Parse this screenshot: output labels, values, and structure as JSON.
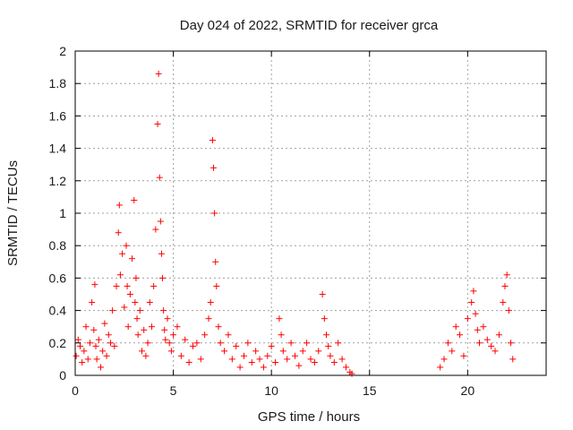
{
  "chart_data": {
    "type": "scatter",
    "title": "Day 024 of 2022, SRMTID for receiver grca",
    "xlabel": "GPS time / hours",
    "ylabel": "SRMTID / TECUs",
    "xlim": [
      0,
      24
    ],
    "ylim": [
      0,
      2
    ],
    "x_ticks": [
      0,
      5,
      10,
      15,
      20
    ],
    "x_tick_labels": [
      "0",
      "5",
      "10",
      "15",
      "20"
    ],
    "y_ticks": [
      0,
      0.2,
      0.4,
      0.6,
      0.8,
      1,
      1.2,
      1.4,
      1.6,
      1.8,
      2
    ],
    "y_tick_labels": [
      "0",
      "0.2",
      "0.4",
      "0.6",
      "0.8",
      "1",
      "1.2",
      "1.4",
      "1.6",
      "1.8",
      "2"
    ],
    "grid": true,
    "marker": "+",
    "series_color": "#ff0000",
    "series": [
      {
        "name": "SRMTID",
        "x": [
          0.05,
          0.15,
          0.25,
          0.35,
          0.45,
          0.55,
          0.65,
          0.75,
          0.85,
          0.95,
          1.0,
          1.05,
          1.1,
          1.2,
          1.3,
          1.4,
          1.5,
          1.6,
          1.7,
          1.8,
          1.9,
          2.0,
          2.1,
          2.2,
          2.25,
          2.3,
          2.4,
          2.5,
          2.6,
          2.65,
          2.7,
          2.8,
          2.9,
          3.0,
          3.05,
          3.1,
          3.15,
          3.2,
          3.3,
          3.4,
          3.5,
          3.6,
          3.7,
          3.8,
          3.9,
          4.0,
          4.1,
          4.2,
          4.25,
          4.3,
          4.35,
          4.4,
          4.45,
          4.5,
          4.55,
          4.6,
          4.7,
          4.8,
          4.9,
          5.0,
          5.2,
          5.4,
          5.6,
          5.8,
          6.0,
          6.2,
          6.4,
          6.6,
          6.8,
          6.9,
          7.0,
          7.05,
          7.1,
          7.15,
          7.2,
          7.3,
          7.4,
          7.6,
          7.8,
          8.0,
          8.2,
          8.4,
          8.6,
          8.8,
          9.0,
          9.2,
          9.4,
          9.6,
          9.8,
          10.0,
          10.2,
          10.4,
          10.5,
          10.6,
          10.8,
          11.0,
          11.2,
          11.4,
          11.6,
          11.8,
          12.0,
          12.2,
          12.4,
          12.6,
          12.7,
          12.8,
          12.9,
          13.0,
          13.2,
          13.4,
          13.6,
          13.8,
          14.0,
          14.1,
          18.6,
          18.8,
          19.0,
          19.2,
          19.4,
          19.6,
          19.8,
          20.0,
          20.2,
          20.3,
          20.4,
          20.5,
          20.6,
          20.8,
          21.0,
          21.2,
          21.4,
          21.6,
          21.8,
          21.9,
          22.0,
          22.1,
          22.2,
          22.3
        ],
        "y": [
          0.12,
          0.22,
          0.18,
          0.08,
          0.15,
          0.3,
          0.1,
          0.2,
          0.45,
          0.28,
          0.56,
          0.18,
          0.1,
          0.22,
          0.05,
          0.15,
          0.32,
          0.12,
          0.25,
          0.2,
          0.4,
          0.18,
          0.55,
          0.88,
          1.05,
          0.62,
          0.75,
          0.42,
          0.8,
          0.55,
          0.3,
          0.5,
          0.72,
          1.08,
          0.45,
          0.6,
          0.35,
          0.25,
          0.4,
          0.15,
          0.28,
          0.12,
          0.2,
          0.45,
          0.3,
          0.55,
          0.9,
          1.55,
          1.86,
          1.22,
          0.95,
          0.75,
          0.6,
          0.4,
          0.28,
          0.22,
          0.35,
          0.2,
          0.15,
          0.25,
          0.3,
          0.12,
          0.22,
          0.08,
          0.18,
          0.2,
          0.1,
          0.25,
          0.35,
          0.45,
          1.45,
          1.28,
          1.0,
          0.7,
          0.55,
          0.3,
          0.2,
          0.15,
          0.25,
          0.1,
          0.18,
          0.05,
          0.12,
          0.2,
          0.08,
          0.15,
          0.1,
          0.05,
          0.12,
          0.18,
          0.08,
          0.35,
          0.25,
          0.15,
          0.1,
          0.2,
          0.12,
          0.06,
          0.15,
          0.2,
          0.1,
          0.08,
          0.15,
          0.5,
          0.35,
          0.25,
          0.18,
          0.12,
          0.08,
          0.2,
          0.1,
          0.05,
          0.02,
          0.01,
          0.05,
          0.1,
          0.2,
          0.15,
          0.3,
          0.25,
          0.12,
          0.35,
          0.45,
          0.52,
          0.38,
          0.28,
          0.2,
          0.3,
          0.22,
          0.18,
          0.15,
          0.25,
          0.45,
          0.55,
          0.62,
          0.4,
          0.2,
          0.1
        ]
      }
    ]
  }
}
